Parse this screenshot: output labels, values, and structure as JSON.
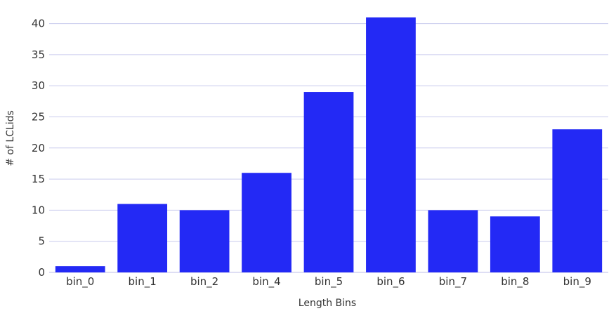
{
  "chart_data": {
    "type": "bar",
    "categories": [
      "bin_0",
      "bin_1",
      "bin_2",
      "bin_4",
      "bin_5",
      "bin_6",
      "bin_7",
      "bin_8",
      "bin_9"
    ],
    "values": [
      1,
      11,
      10,
      16,
      29,
      41,
      10,
      9,
      23
    ],
    "title": "",
    "xlabel": "Length Bins",
    "ylabel": "# of LCLids",
    "ylim": [
      0,
      43
    ],
    "yticks": [
      0,
      5,
      10,
      15,
      20,
      25,
      30,
      35,
      40
    ],
    "grid": true,
    "legend": "none",
    "bar_color": "#2329f5",
    "grid_color": "#c9cbee"
  }
}
